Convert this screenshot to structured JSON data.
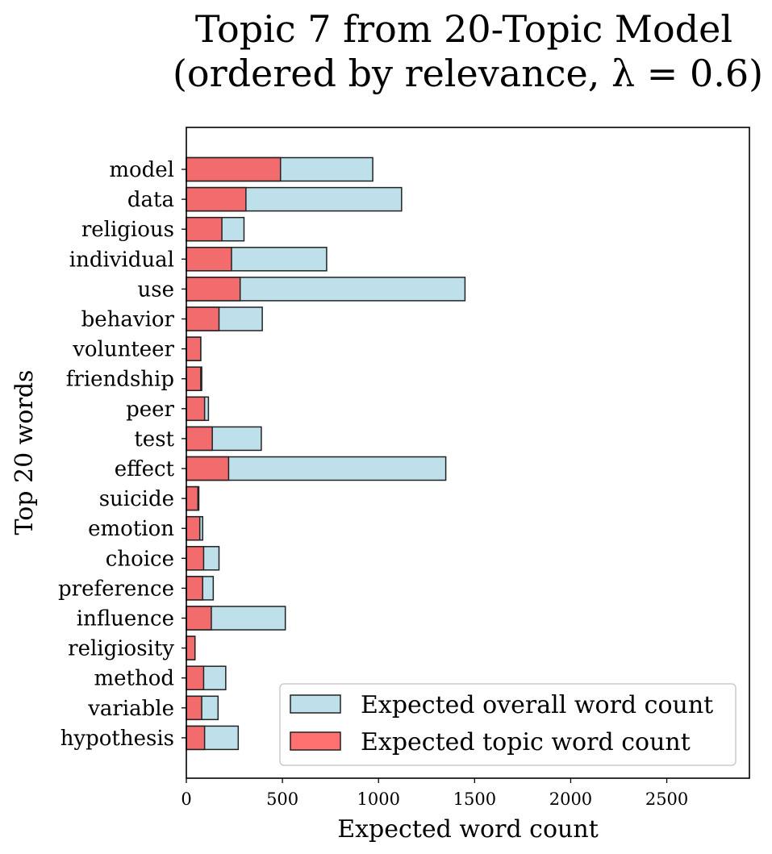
{
  "chart_data": {
    "type": "bar",
    "orientation": "horizontal",
    "title_line1": "Topic 7 from 20-Topic Model",
    "title_line2": "(ordered by relevance, λ = 0.6)",
    "xlabel": "Expected word count",
    "ylabel": "Top 20 words",
    "xlim": [
      0,
      2930
    ],
    "xticks": [
      0,
      500,
      1000,
      1500,
      2000,
      2500
    ],
    "grid": false,
    "legend_position": "lower-right",
    "categories": [
      "model",
      "data",
      "religious",
      "individual",
      "use",
      "behavior",
      "volunteer",
      "friendship",
      "peer",
      "test",
      "effect",
      "suicide",
      "emotion",
      "choice",
      "preference",
      "influence",
      "religiosity",
      "method",
      "variable",
      "hypothesis"
    ],
    "series": [
      {
        "name": "Expected overall word count",
        "color": "#add8e6",
        "values": [
          970,
          1120,
          300,
          730,
          1450,
          395,
          75,
          80,
          115,
          390,
          1350,
          65,
          85,
          170,
          140,
          515,
          45,
          205,
          165,
          270
        ]
      },
      {
        "name": "Expected topic word count",
        "color": "#ff4d4d",
        "values": [
          490,
          310,
          185,
          235,
          280,
          170,
          75,
          75,
          95,
          135,
          220,
          60,
          70,
          90,
          85,
          130,
          45,
          90,
          80,
          95
        ]
      }
    ]
  }
}
